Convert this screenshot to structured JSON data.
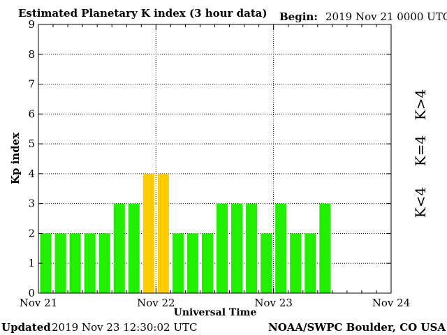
{
  "header": {
    "title": "Estimated Planetary K index (3 hour data)",
    "begin_label": "Begin:",
    "begin_value": "2019 Nov 21 0000 UTC"
  },
  "footer": {
    "updated_label": "Updated",
    "updated_value": "2019 Nov 23 12:30:02 UTC",
    "source": "NOAA/SWPC Boulder, CO USA"
  },
  "legend": {
    "low": "K<4",
    "equal": "K=4",
    "high": "K>4"
  },
  "colors": {
    "low": "#22ee00",
    "equal": "#ffcc00",
    "high": "#ff2200"
  },
  "chart_data": {
    "type": "bar",
    "title": "Estimated Planetary K index (3 hour data)",
    "xlabel": "Universal Time",
    "ylabel": "Kp index",
    "ylim": [
      0,
      9
    ],
    "yticks": [
      "0",
      "1",
      "2",
      "3",
      "4",
      "5",
      "6",
      "7",
      "8",
      "9"
    ],
    "x_ticks": [
      "Nov 21",
      "Nov 22",
      "Nov 23",
      "Nov 24"
    ],
    "x_range_days": 3,
    "bar_interval_hours": 3,
    "grid": true,
    "values": [
      2,
      2,
      2,
      2,
      2,
      3,
      3,
      4,
      4,
      2,
      2,
      2,
      3,
      3,
      3,
      2,
      3,
      2,
      2,
      3
    ]
  }
}
